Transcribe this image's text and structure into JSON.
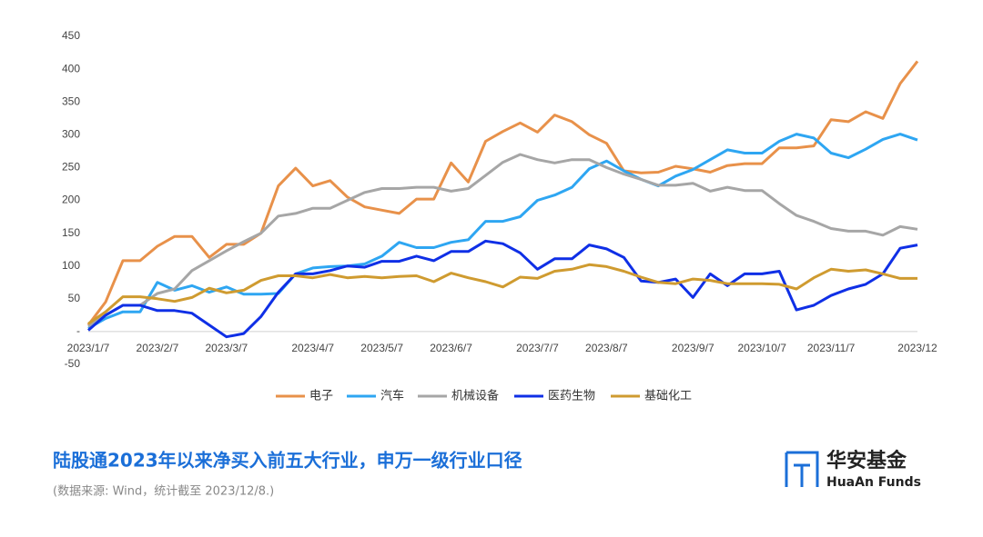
{
  "chart_data": {
    "type": "line",
    "categories": [
      "2023/1/7",
      null,
      null,
      null,
      "2023/2/7",
      null,
      null,
      null,
      "2023/3/7",
      null,
      null,
      null,
      null,
      "2023/4/7",
      null,
      null,
      null,
      "2023/5/7",
      null,
      null,
      null,
      "2023/6/7",
      null,
      null,
      null,
      null,
      "2023/7/7",
      null,
      null,
      null,
      "2023/8/7",
      null,
      null,
      null,
      null,
      "2023/9/7",
      null,
      null,
      null,
      "2023/10/7",
      null,
      null,
      null,
      "2023/11/7",
      null,
      null,
      null,
      null,
      "2023/12"
    ],
    "ylim": [
      -50,
      450
    ],
    "yticks": [
      -50,
      {
        "value": 0,
        "label": "-"
      },
      50,
      100,
      150,
      200,
      250,
      300,
      350,
      400,
      450
    ],
    "legend": "bottom",
    "series": [
      {
        "name": "电子",
        "color": "#e8914a",
        "values": [
          10,
          45,
          108,
          108,
          130,
          145,
          145,
          113,
          133,
          133,
          150,
          222,
          249,
          222,
          230,
          205,
          190,
          185,
          180,
          202,
          202,
          257,
          228,
          290,
          305,
          318,
          304,
          330,
          320,
          300,
          287,
          245,
          242,
          243,
          252,
          248,
          243,
          253,
          256,
          256,
          280,
          280,
          283,
          323,
          320,
          335,
          325,
          378,
          412
        ]
      },
      {
        "name": "汽车",
        "color": "#2ea6f2",
        "values": [
          5,
          20,
          30,
          30,
          75,
          63,
          70,
          60,
          68,
          57,
          57,
          58,
          88,
          97,
          99,
          100,
          103,
          115,
          136,
          128,
          128,
          136,
          140,
          168,
          168,
          175,
          200,
          208,
          220,
          248,
          260,
          245,
          232,
          222,
          237,
          247,
          262,
          277,
          272,
          272,
          290,
          301,
          295,
          272,
          265,
          278,
          293,
          301,
          292
        ]
      },
      {
        "name": "机械设备",
        "color": "#a6a6a6",
        "values": [
          8,
          25,
          40,
          40,
          58,
          65,
          93,
          108,
          123,
          137,
          150,
          176,
          180,
          188,
          188,
          200,
          212,
          218,
          218,
          220,
          220,
          214,
          218,
          238,
          258,
          270,
          262,
          257,
          262,
          262,
          250,
          240,
          232,
          223,
          223,
          226,
          214,
          220,
          215,
          215,
          195,
          177,
          168,
          157,
          153,
          153,
          147,
          160,
          156
        ]
      },
      {
        "name": "医药生物",
        "color": "#0f2fe6",
        "values": [
          2,
          25,
          40,
          40,
          32,
          32,
          28,
          10,
          -8,
          -3,
          23,
          60,
          88,
          88,
          93,
          100,
          98,
          107,
          107,
          115,
          108,
          122,
          122,
          138,
          134,
          120,
          95,
          111,
          111,
          132,
          126,
          113,
          77,
          75,
          80,
          52,
          88,
          70,
          88,
          88,
          92,
          33,
          40,
          55,
          65,
          72,
          88,
          127,
          132
        ]
      },
      {
        "name": "基础化工",
        "color": "#cf9b30",
        "values": [
          12,
          30,
          53,
          53,
          50,
          46,
          52,
          66,
          59,
          63,
          78,
          85,
          85,
          82,
          87,
          82,
          84,
          82,
          84,
          85,
          76,
          89,
          82,
          76,
          68,
          83,
          81,
          92,
          95,
          102,
          99,
          92,
          83,
          75,
          73,
          80,
          78,
          73,
          73,
          73,
          72,
          65,
          82,
          95,
          92,
          94,
          88,
          81,
          81
        ]
      }
    ]
  },
  "footer": {
    "title": "陆股通2023年以来净买入前五大行业，申万一级行业口径",
    "source": "(数据来源: Wind，统计截至 2023/12/8.)"
  },
  "logo": {
    "name": "华安基金",
    "english": "HuaAn Funds"
  }
}
